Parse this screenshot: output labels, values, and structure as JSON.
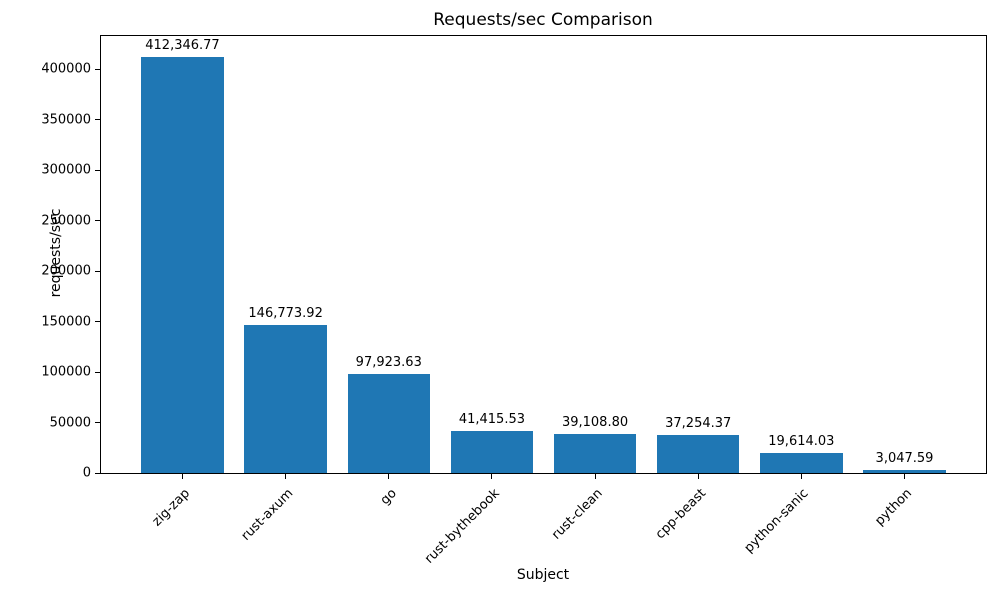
{
  "chart_data": {
    "type": "bar",
    "title": "Requests/sec Comparison",
    "xlabel": "Subject",
    "ylabel": "requests/sec",
    "categories": [
      "zig-zap",
      "rust-axum",
      "go",
      "rust-bythebook",
      "rust-clean",
      "cpp-beast",
      "python-sanic",
      "python"
    ],
    "values": [
      412346.77,
      146773.92,
      97923.63,
      41415.53,
      39108.8,
      37254.37,
      19614.03,
      3047.59
    ],
    "value_labels": [
      "412,346.77",
      "146,773.92",
      "97,923.63",
      "41,415.53",
      "39,108.80",
      "37,254.37",
      "19,614.03",
      "3,047.59"
    ],
    "yticks": [
      0,
      50000,
      100000,
      150000,
      200000,
      250000,
      300000,
      350000,
      400000
    ],
    "ytick_labels": [
      "0",
      "50000",
      "100000",
      "150000",
      "200000",
      "250000",
      "300000",
      "350000",
      "400000"
    ],
    "ylim": [
      0,
      433000
    ],
    "xlim": [
      -0.79,
      7.79
    ],
    "bar_width_units": 0.8,
    "bar_color": "#1f77b4",
    "text_color": "#000000",
    "grid": false,
    "legend": null
  }
}
